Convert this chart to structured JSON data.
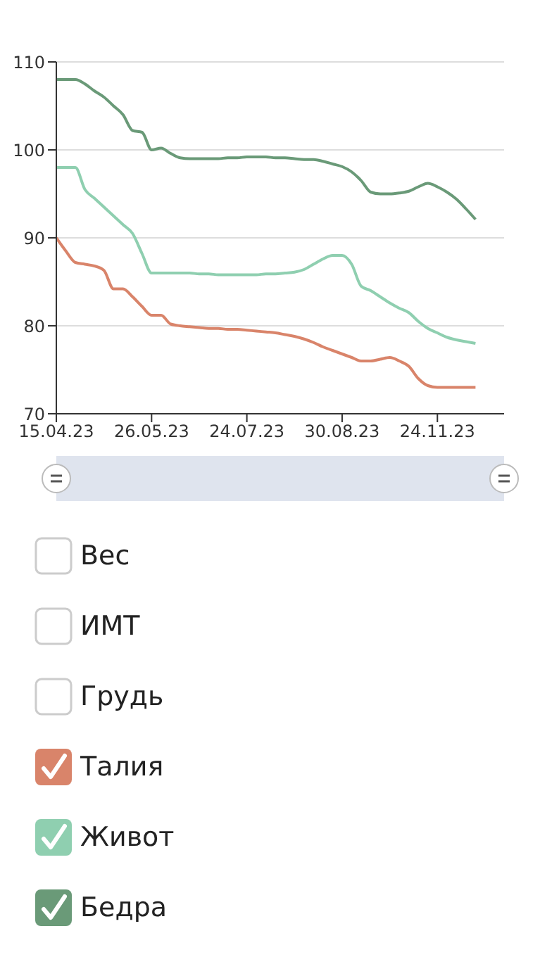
{
  "chart_data": {
    "type": "line",
    "categories": [
      "15.04.23",
      null,
      null,
      null,
      null,
      null,
      null,
      null,
      null,
      null,
      "26.05.23",
      null,
      null,
      null,
      null,
      null,
      null,
      null,
      null,
      null,
      "24.07.23",
      null,
      null,
      null,
      null,
      null,
      null,
      null,
      null,
      null,
      "30.08.23",
      null,
      null,
      null,
      null,
      null,
      null,
      null,
      null,
      null,
      "24.11.23",
      null,
      null,
      null,
      null,
      null,
      null,
      null
    ],
    "series": [
      {
        "name": "Вес",
        "values": [
          null,
          null,
          null,
          null,
          null,
          null,
          null,
          null,
          null,
          null,
          null,
          null,
          null,
          null,
          null,
          null,
          null,
          null,
          null,
          null,
          null,
          null,
          null,
          null,
          null,
          null,
          null,
          null,
          null,
          null,
          null,
          null,
          null,
          null,
          null,
          null,
          null,
          null,
          null,
          null,
          null,
          null,
          null,
          null,
          null,
          null,
          null,
          null
        ]
      },
      {
        "name": "ИМТ",
        "values": [
          null,
          null,
          null,
          null,
          null,
          null,
          null,
          null,
          null,
          null,
          null,
          null,
          null,
          null,
          null,
          null,
          null,
          null,
          null,
          null,
          null,
          null,
          null,
          null,
          null,
          null,
          null,
          null,
          null,
          null,
          null,
          null,
          null,
          null,
          null,
          null,
          null,
          null,
          null,
          null,
          null,
          null,
          null,
          null,
          null,
          null,
          null,
          null
        ]
      },
      {
        "name": "Грудь",
        "values": [
          null,
          null,
          null,
          null,
          null,
          null,
          null,
          null,
          null,
          null,
          null,
          null,
          null,
          null,
          null,
          null,
          null,
          null,
          null,
          null,
          null,
          null,
          null,
          null,
          null,
          null,
          null,
          null,
          null,
          null,
          null,
          null,
          null,
          null,
          null,
          null,
          null,
          null,
          null,
          null,
          null,
          null,
          null,
          null,
          null,
          null,
          null,
          null
        ]
      },
      {
        "name": "Талия",
        "color": "#d9846a",
        "values": [
          90,
          88.5,
          87.2,
          87,
          86.8,
          86.3,
          84.2,
          84.2,
          83.3,
          82.2,
          81.2,
          81.2,
          80.2,
          80,
          79.9,
          79.8,
          79.7,
          79.7,
          79.6,
          79.6,
          79.5,
          79.4,
          79.3,
          79.2,
          79,
          78.8,
          78.5,
          78.1,
          77.6,
          77.2,
          76.8,
          76.4,
          76,
          76,
          76.2,
          76.4,
          76,
          75.4,
          74,
          73.2,
          73,
          73,
          73,
          73,
          73,
          null,
          null,
          null
        ]
      },
      {
        "name": "Живот",
        "color": "#8fcfb0",
        "values": [
          98,
          98,
          98,
          95.5,
          94.5,
          93.5,
          92.5,
          91.5,
          90.5,
          88.2,
          86,
          86,
          86,
          86,
          86,
          85.9,
          85.9,
          85.8,
          85.8,
          85.8,
          85.8,
          85.8,
          85.9,
          85.9,
          86,
          86.1,
          86.4,
          87,
          87.6,
          88,
          88,
          87,
          84.5,
          84,
          83.3,
          82.6,
          82,
          81.5,
          80.5,
          79.7,
          79.2,
          78.7,
          78.4,
          78.2,
          78,
          null,
          null,
          null
        ]
      },
      {
        "name": "Бедра",
        "color": "#6a9a78",
        "values": [
          108,
          108,
          108,
          107.5,
          106.7,
          106,
          105,
          104,
          102.2,
          102,
          100,
          100.2,
          99.6,
          99.1,
          99,
          99,
          99,
          99,
          99.1,
          99.1,
          99.2,
          99.2,
          99.2,
          99.1,
          99.1,
          99,
          98.9,
          98.9,
          98.7,
          98.4,
          98.1,
          97.5,
          96.5,
          95.2,
          95,
          95,
          95.1,
          95.3,
          95.8,
          96.2,
          95.8,
          95.2,
          94.4,
          93.3,
          92.1,
          null,
          null,
          null
        ]
      }
    ],
    "ylim": [
      70,
      110
    ],
    "yticks": [
      70,
      80,
      90,
      100,
      110
    ],
    "grid": "y",
    "legend": "bottom",
    "marker": "none",
    "line_style": "solid"
  }
}
